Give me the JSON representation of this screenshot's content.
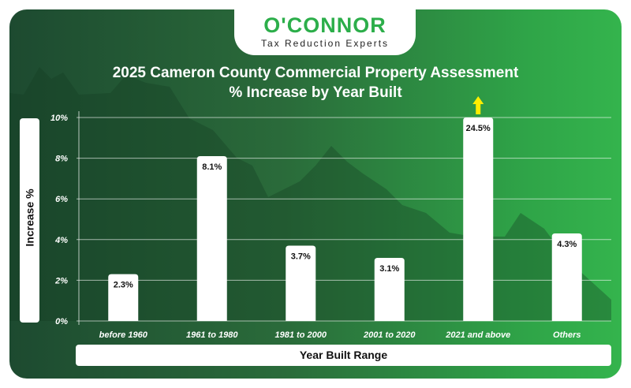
{
  "logo": {
    "name": "O'CONNOR",
    "tagline": "Tax Reduction Experts"
  },
  "chart_data": {
    "type": "bar",
    "title": "2025 Cameron County Commercial Property Assessment",
    "subtitle": "% Increase by Year Built",
    "xlabel": "Year Built Range",
    "ylabel": "Increase %",
    "categories": [
      "before 1960",
      "1961 to 1980",
      "1981 to 2000",
      "2001 to 2020",
      "2021 and above",
      "Others"
    ],
    "values": [
      2.3,
      8.1,
      3.7,
      3.1,
      24.5,
      4.3
    ],
    "data_labels": [
      "2.3%",
      "8.1%",
      "3.7%",
      "3.1%",
      "24.5%",
      "4.3%"
    ],
    "yticks": [
      "0%",
      "2%",
      "4%",
      "6%",
      "8%",
      "10%"
    ],
    "ylim": [
      0,
      10
    ],
    "grid": true,
    "overflow_arrow_color": "#ffee00",
    "bar_color": "#ffffff"
  }
}
